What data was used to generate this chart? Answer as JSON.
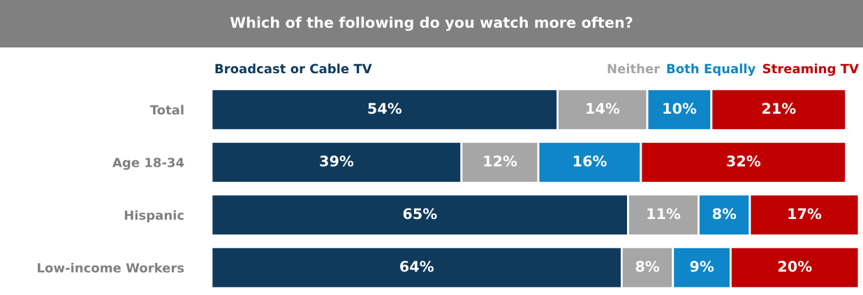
{
  "chart_data": {
    "type": "bar",
    "orientation": "horizontal",
    "stacked": true,
    "title": "Which of the following do you watch more often?",
    "categories": [
      "Total",
      "Age 18-34",
      "Hispanic",
      "Low-income Workers"
    ],
    "series": [
      {
        "name": "Broadcast or Cable TV",
        "color": "#0f3a5c",
        "values": [
          54,
          39,
          65,
          64
        ],
        "value_labels": [
          "54%",
          "39%",
          "65%",
          "64%"
        ]
      },
      {
        "name": "Neither",
        "color": "#a6a6a6",
        "values": [
          14,
          12,
          11,
          8
        ],
        "value_labels": [
          "14%",
          "12%",
          "11%",
          "8%"
        ]
      },
      {
        "name": "Both Equally",
        "color": "#0e86c8",
        "values": [
          10,
          16,
          8,
          9
        ],
        "value_labels": [
          "10%",
          "16%",
          "8%",
          "9%"
        ]
      },
      {
        "name": "Streaming TV",
        "color": "#c00000",
        "values": [
          21,
          32,
          17,
          20
        ],
        "value_labels": [
          "21%",
          "32%",
          "17%",
          "20%"
        ]
      }
    ],
    "legend": "top",
    "grid": false
  }
}
